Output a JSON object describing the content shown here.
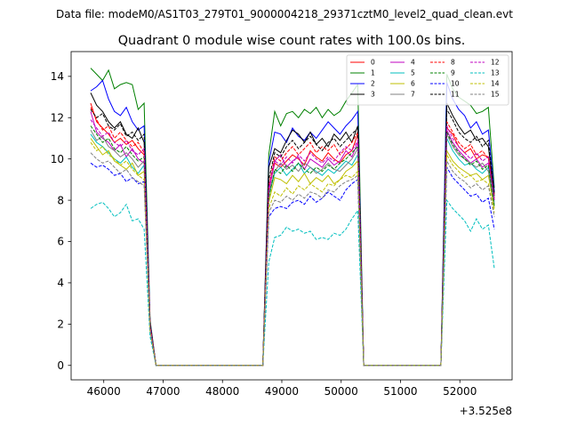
{
  "chart_data": {
    "type": "line",
    "suptitle": "Data file: modeM0/AS1T03_279T01_9000004218_29371cztM0_level2_quad_clean.evt",
    "title": "Quadrant 0 module wise count rates with 100.0s bins.",
    "xlabel": "",
    "ylabel": "",
    "x_offset_label": "+3.525e8",
    "xlim": [
      45450,
      52880
    ],
    "ylim": [
      -0.7,
      15.2
    ],
    "xticks": [
      46000,
      47000,
      48000,
      49000,
      50000,
      51000,
      52000
    ],
    "yticks": [
      0,
      2,
      4,
      6,
      8,
      10,
      12,
      14
    ],
    "grid": false,
    "legend_placement": "top-right",
    "x": [
      45780,
      45880,
      45980,
      46080,
      46180,
      46280,
      46380,
      46480,
      46580,
      46680,
      46780,
      46880,
      46980,
      47080,
      47180,
      47280,
      47380,
      47480,
      47580,
      47680,
      47780,
      47880,
      47980,
      48080,
      48180,
      48280,
      48380,
      48480,
      48580,
      48680,
      48780,
      48880,
      48980,
      49080,
      49180,
      49280,
      49380,
      49480,
      49580,
      49680,
      49780,
      49880,
      49980,
      50080,
      50180,
      50280,
      50380,
      50480,
      50580,
      50680,
      50780,
      50880,
      50980,
      51080,
      51180,
      51280,
      51380,
      51480,
      51580,
      51680,
      51780,
      51880,
      51980,
      52080,
      52180,
      52280,
      52380,
      52480,
      52580
    ],
    "series": [
      {
        "name": "0",
        "color": "#ff0000",
        "dash": "solid",
        "values": [
          12.7,
          11.8,
          11.5,
          11.2,
          10.8,
          11.0,
          10.7,
          10.9,
          10.5,
          10.2,
          2.0,
          0,
          0,
          0,
          0,
          0,
          0,
          0,
          0,
          0,
          0,
          0,
          0,
          0,
          0,
          0,
          0,
          0,
          0,
          0,
          8.5,
          9.8,
          9.6,
          9.9,
          10.2,
          10.0,
          9.7,
          10.4,
          10.1,
          9.9,
          10.3,
          10.0,
          9.8,
          10.2,
          10.4,
          11.2,
          0,
          0,
          0,
          0,
          0,
          0,
          0,
          0,
          0,
          0,
          0,
          0,
          0,
          0,
          11.5,
          11.2,
          10.6,
          10.3,
          10.5,
          10.0,
          10.2,
          10.1,
          8.3
        ]
      },
      {
        "name": "1",
        "color": "#008000",
        "dash": "solid",
        "values": [
          14.4,
          14.1,
          13.8,
          14.3,
          13.4,
          13.6,
          13.7,
          13.6,
          12.4,
          12.7,
          2.2,
          0,
          0,
          0,
          0,
          0,
          0,
          0,
          0,
          0,
          0,
          0,
          0,
          0,
          0,
          0,
          0,
          0,
          0,
          0,
          10.2,
          12.3,
          11.6,
          12.2,
          12.3,
          12.0,
          12.4,
          12.2,
          12.5,
          12.0,
          12.4,
          12.1,
          12.3,
          12.8,
          13.2,
          13.6,
          0,
          0,
          0,
          0,
          0,
          0,
          0,
          0,
          0,
          0,
          0,
          0,
          0,
          0,
          14.1,
          13.4,
          13.0,
          12.8,
          12.6,
          12.2,
          12.3,
          12.5,
          8.6
        ]
      },
      {
        "name": "2",
        "color": "#0000ff",
        "dash": "solid",
        "values": [
          13.3,
          13.5,
          13.8,
          12.9,
          12.3,
          12.1,
          12.5,
          11.8,
          11.4,
          11.6,
          2.1,
          0,
          0,
          0,
          0,
          0,
          0,
          0,
          0,
          0,
          0,
          0,
          0,
          0,
          0,
          0,
          0,
          0,
          0,
          0,
          9.8,
          11.3,
          11.2,
          10.8,
          11.5,
          11.1,
          10.9,
          11.3,
          11.0,
          11.4,
          11.8,
          11.5,
          11.2,
          11.6,
          11.9,
          12.3,
          0,
          0,
          0,
          0,
          0,
          0,
          0,
          0,
          0,
          0,
          0,
          0,
          0,
          0,
          13.7,
          12.9,
          12.4,
          12.1,
          11.5,
          11.8,
          11.2,
          11.4,
          8.4
        ]
      },
      {
        "name": "3",
        "color": "#000000",
        "dash": "solid",
        "values": [
          13.2,
          12.6,
          12.3,
          11.8,
          11.5,
          11.8,
          11.2,
          11.0,
          11.5,
          10.8,
          2.0,
          0,
          0,
          0,
          0,
          0,
          0,
          0,
          0,
          0,
          0,
          0,
          0,
          0,
          0,
          0,
          0,
          0,
          0,
          0,
          9.6,
          10.5,
          10.3,
          10.9,
          11.4,
          11.2,
          10.8,
          11.3,
          10.7,
          11.0,
          10.6,
          11.2,
          10.9,
          11.3,
          10.8,
          11.6,
          0,
          0,
          0,
          0,
          0,
          0,
          0,
          0,
          0,
          0,
          0,
          0,
          0,
          0,
          12.7,
          12.1,
          11.6,
          11.2,
          11.4,
          10.9,
          11.0,
          10.6,
          8.2
        ]
      },
      {
        "name": "4",
        "color": "#c000c0",
        "dash": "solid",
        "values": [
          12.3,
          11.3,
          11.0,
          10.8,
          10.4,
          10.7,
          10.1,
          10.5,
          10.0,
          9.8,
          1.9,
          0,
          0,
          0,
          0,
          0,
          0,
          0,
          0,
          0,
          0,
          0,
          0,
          0,
          0,
          0,
          0,
          0,
          0,
          0,
          8.4,
          9.9,
          10.2,
          9.6,
          9.9,
          10.1,
          9.5,
          10.0,
          9.8,
          9.6,
          10.0,
          9.7,
          9.9,
          10.4,
          10.1,
          10.8,
          0,
          0,
          0,
          0,
          0,
          0,
          0,
          0,
          0,
          0,
          0,
          0,
          0,
          0,
          11.4,
          10.8,
          10.4,
          10.1,
          9.8,
          10.0,
          9.6,
          9.8,
          8.0
        ]
      },
      {
        "name": "5",
        "color": "#00bfbf",
        "dash": "solid",
        "values": [
          11.2,
          10.8,
          10.6,
          10.3,
          10.0,
          9.8,
          10.1,
          9.6,
          9.3,
          9.7,
          1.8,
          0,
          0,
          0,
          0,
          0,
          0,
          0,
          0,
          0,
          0,
          0,
          0,
          0,
          0,
          0,
          0,
          0,
          0,
          0,
          8.2,
          9.3,
          9.6,
          9.2,
          9.5,
          9.8,
          9.3,
          9.6,
          9.4,
          9.2,
          9.5,
          9.3,
          9.6,
          9.9,
          9.7,
          10.2,
          0,
          0,
          0,
          0,
          0,
          0,
          0,
          0,
          0,
          0,
          0,
          0,
          0,
          0,
          11.0,
          10.4,
          10.0,
          9.7,
          9.8,
          9.5,
          9.3,
          9.6,
          7.9
        ]
      },
      {
        "name": "6",
        "color": "#bfbf00",
        "dash": "solid",
        "values": [
          11.0,
          10.6,
          10.2,
          10.4,
          9.9,
          9.7,
          9.5,
          9.8,
          9.2,
          9.4,
          1.8,
          0,
          0,
          0,
          0,
          0,
          0,
          0,
          0,
          0,
          0,
          0,
          0,
          0,
          0,
          0,
          0,
          0,
          0,
          0,
          7.9,
          9.1,
          9.0,
          8.8,
          9.2,
          8.9,
          9.3,
          8.8,
          9.1,
          8.9,
          9.2,
          8.8,
          9.0,
          9.4,
          9.6,
          9.9,
          0,
          0,
          0,
          0,
          0,
          0,
          0,
          0,
          0,
          0,
          0,
          0,
          0,
          0,
          10.4,
          9.9,
          9.6,
          9.4,
          9.2,
          9.3,
          9.0,
          9.2,
          7.6
        ]
      },
      {
        "name": "7",
        "color": "#808080",
        "dash": "solid",
        "values": [
          11.4,
          10.9,
          11.1,
          10.6,
          10.4,
          10.1,
          10.3,
          10.0,
          9.6,
          9.9,
          1.9,
          0,
          0,
          0,
          0,
          0,
          0,
          0,
          0,
          0,
          0,
          0,
          0,
          0,
          0,
          0,
          0,
          0,
          0,
          0,
          8.3,
          9.4,
          9.8,
          9.5,
          9.7,
          9.4,
          9.8,
          9.6,
          9.3,
          9.5,
          9.8,
          9.5,
          9.4,
          9.7,
          10.0,
          10.5,
          0,
          0,
          0,
          0,
          0,
          0,
          0,
          0,
          0,
          0,
          0,
          0,
          0,
          0,
          11.2,
          10.6,
          10.2,
          10.0,
          9.8,
          9.6,
          9.8,
          9.4,
          7.8
        ]
      },
      {
        "name": "8",
        "color": "#ff0000",
        "dash": "dashed",
        "values": [
          12.5,
          11.9,
          11.4,
          11.6,
          11.0,
          11.3,
          10.9,
          10.6,
          10.8,
          10.3,
          2.0,
          0,
          0,
          0,
          0,
          0,
          0,
          0,
          0,
          0,
          0,
          0,
          0,
          0,
          0,
          0,
          0,
          0,
          0,
          0,
          8.7,
          10.1,
          9.9,
          10.3,
          10.6,
          10.2,
          10.5,
          10.8,
          10.3,
          10.6,
          10.4,
          10.7,
          10.2,
          10.5,
          10.8,
          11.3,
          0,
          0,
          0,
          0,
          0,
          0,
          0,
          0,
          0,
          0,
          0,
          0,
          0,
          0,
          11.8,
          11.3,
          10.8,
          10.5,
          10.7,
          10.2,
          10.4,
          10.0,
          8.1
        ]
      },
      {
        "name": "9",
        "color": "#008000",
        "dash": "dashed",
        "values": [
          11.6,
          11.2,
          10.8,
          11.0,
          10.5,
          10.3,
          10.6,
          10.2,
          9.9,
          10.1,
          1.9,
          0,
          0,
          0,
          0,
          0,
          0,
          0,
          0,
          0,
          0,
          0,
          0,
          0,
          0,
          0,
          0,
          0,
          0,
          0,
          8.1,
          9.5,
          9.3,
          9.7,
          9.4,
          9.8,
          9.5,
          9.3,
          9.6,
          9.4,
          9.7,
          9.5,
          9.8,
          10.0,
          10.3,
          10.6,
          0,
          0,
          0,
          0,
          0,
          0,
          0,
          0,
          0,
          0,
          0,
          0,
          0,
          0,
          11.3,
          10.7,
          10.3,
          10.0,
          9.7,
          9.9,
          9.5,
          9.7,
          7.7
        ]
      },
      {
        "name": "10",
        "color": "#0000ff",
        "dash": "dashed",
        "values": [
          9.8,
          9.6,
          9.7,
          9.5,
          9.2,
          9.3,
          8.9,
          9.1,
          8.8,
          8.9,
          1.7,
          0,
          0,
          0,
          0,
          0,
          0,
          0,
          0,
          0,
          0,
          0,
          0,
          0,
          0,
          0,
          0,
          0,
          0,
          0,
          7.2,
          7.6,
          7.7,
          7.6,
          7.9,
          8.0,
          7.8,
          8.2,
          7.9,
          8.1,
          8.4,
          8.2,
          8.0,
          8.5,
          8.8,
          9.0,
          0,
          0,
          0,
          0,
          0,
          0,
          0,
          0,
          0,
          0,
          0,
          0,
          0,
          0,
          9.6,
          9.1,
          8.8,
          8.5,
          8.2,
          8.3,
          7.9,
          8.1,
          6.6
        ]
      },
      {
        "name": "11",
        "color": "#000000",
        "dash": "dashed",
        "values": [
          12.4,
          12.0,
          12.2,
          11.6,
          11.4,
          11.7,
          11.1,
          11.3,
          10.9,
          11.2,
          2.0,
          0,
          0,
          0,
          0,
          0,
          0,
          0,
          0,
          0,
          0,
          0,
          0,
          0,
          0,
          0,
          0,
          0,
          0,
          0,
          9.0,
          10.3,
          10.1,
          10.6,
          10.9,
          10.5,
          10.8,
          11.1,
          10.7,
          10.4,
          10.8,
          11.0,
          10.6,
          10.9,
          11.2,
          11.5,
          0,
          0,
          0,
          0,
          0,
          0,
          0,
          0,
          0,
          0,
          0,
          0,
          0,
          0,
          12.4,
          11.9,
          11.3,
          11.0,
          10.8,
          11.1,
          10.6,
          10.9,
          8.3
        ]
      },
      {
        "name": "12",
        "color": "#c000c0",
        "dash": "dashed",
        "values": [
          11.9,
          11.5,
          11.1,
          11.3,
          10.8,
          10.6,
          10.9,
          10.4,
          10.2,
          10.5,
          1.9,
          0,
          0,
          0,
          0,
          0,
          0,
          0,
          0,
          0,
          0,
          0,
          0,
          0,
          0,
          0,
          0,
          0,
          0,
          0,
          8.6,
          9.9,
          9.7,
          10.1,
          9.8,
          10.2,
          9.9,
          10.3,
          10.0,
          9.8,
          10.1,
          9.9,
          10.3,
          10.6,
          10.4,
          10.9,
          0,
          0,
          0,
          0,
          0,
          0,
          0,
          0,
          0,
          0,
          0,
          0,
          0,
          0,
          11.6,
          11.0,
          10.6,
          10.3,
          10.0,
          10.3,
          9.9,
          10.1,
          8.0
        ]
      },
      {
        "name": "13",
        "color": "#00bfbf",
        "dash": "dashed",
        "values": [
          7.6,
          7.8,
          7.9,
          7.6,
          7.2,
          7.4,
          7.8,
          7.0,
          7.1,
          6.6,
          1.4,
          0,
          0,
          0,
          0,
          0,
          0,
          0,
          0,
          0,
          0,
          0,
          0,
          0,
          0,
          0,
          0,
          0,
          0,
          0,
          5.0,
          6.2,
          6.3,
          6.7,
          6.5,
          6.6,
          6.4,
          6.5,
          6.1,
          6.2,
          6.1,
          6.4,
          6.3,
          6.6,
          7.1,
          7.5,
          0,
          0,
          0,
          0,
          0,
          0,
          0,
          0,
          0,
          0,
          0,
          0,
          0,
          0,
          8.0,
          7.6,
          7.3,
          7.0,
          6.5,
          7.1,
          6.6,
          6.8,
          4.7
        ]
      },
      {
        "name": "14",
        "color": "#bfbf00",
        "dash": "dashed",
        "values": [
          10.8,
          10.4,
          10.6,
          10.2,
          10.0,
          9.7,
          9.9,
          9.5,
          9.2,
          9.0,
          1.7,
          0,
          0,
          0,
          0,
          0,
          0,
          0,
          0,
          0,
          0,
          0,
          0,
          0,
          0,
          0,
          0,
          0,
          0,
          0,
          7.6,
          8.4,
          8.2,
          8.6,
          8.3,
          8.7,
          8.5,
          8.8,
          8.6,
          8.4,
          8.8,
          8.7,
          9.0,
          9.2,
          9.1,
          9.4,
          0,
          0,
          0,
          0,
          0,
          0,
          0,
          0,
          0,
          0,
          0,
          0,
          0,
          0,
          10.2,
          9.7,
          9.4,
          9.1,
          9.2,
          8.9,
          9.0,
          8.8,
          7.4
        ]
      },
      {
        "name": "15",
        "color": "#808080",
        "dash": "dashed",
        "values": [
          10.3,
          10.0,
          9.8,
          9.9,
          9.6,
          9.3,
          9.5,
          9.1,
          8.9,
          8.7,
          1.7,
          0,
          0,
          0,
          0,
          0,
          0,
          0,
          0,
          0,
          0,
          0,
          0,
          0,
          0,
          0,
          0,
          0,
          0,
          0,
          7.4,
          8.0,
          7.9,
          8.2,
          8.0,
          8.3,
          8.1,
          8.4,
          8.3,
          8.1,
          8.5,
          8.4,
          8.7,
          8.9,
          9.0,
          9.2,
          0,
          0,
          0,
          0,
          0,
          0,
          0,
          0,
          0,
          0,
          0,
          0,
          0,
          0,
          9.9,
          9.4,
          9.1,
          8.9,
          8.6,
          8.8,
          8.5,
          8.7,
          7.2
        ]
      }
    ]
  }
}
